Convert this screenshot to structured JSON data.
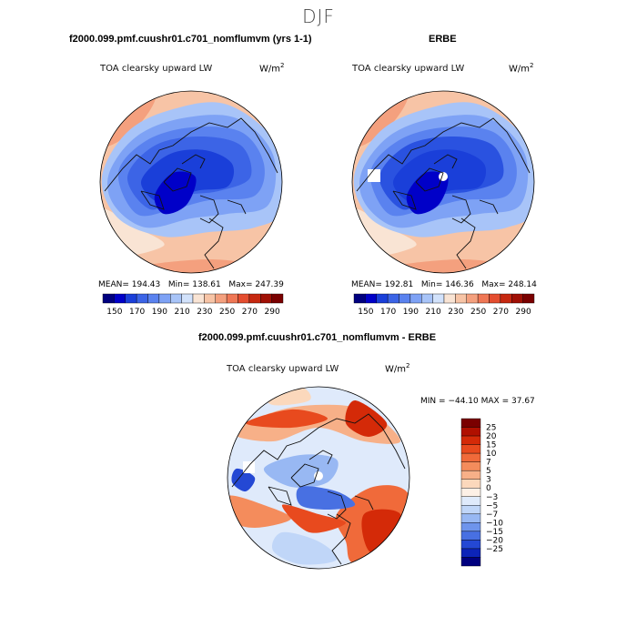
{
  "page": {
    "title": "DJF"
  },
  "chart_data": [
    {
      "type": "heatmap",
      "panel": "top-left",
      "title": "f2000.099.pmf.cuushr01.c701_nomflumvm (yrs 1-1)",
      "variable": "TOA clearsky upward LW",
      "units_base": "W/m",
      "units_exp": "2",
      "stats": {
        "mean_label": "MEAN=",
        "mean": "194.43",
        "min_label": "Min=",
        "min": "138.61",
        "max_label": "Max=",
        "max": "247.39"
      },
      "colorbar": {
        "orientation": "horizontal",
        "tick_labels": [
          "150",
          "170",
          "190",
          "210",
          "230",
          "250",
          "270",
          "290"
        ],
        "colors": [
          "#00007f",
          "#0000c8",
          "#1a3fd9",
          "#3c64e6",
          "#5a82ef",
          "#7ea2f5",
          "#a8c4f8",
          "#d2e2fb",
          "#f9e4d4",
          "#f7c4a6",
          "#f4a07e",
          "#ef7755",
          "#e44d2f",
          "#c62810",
          "#a01005",
          "#7a0000"
        ]
      },
      "projection": "north polar stereographic"
    },
    {
      "type": "heatmap",
      "panel": "top-right",
      "title": "ERBE",
      "variable": "TOA clearsky upward LW",
      "units_base": "W/m",
      "units_exp": "2",
      "stats": {
        "mean_label": "MEAN=",
        "mean": "192.81",
        "min_label": "Min=",
        "min": "146.36",
        "max_label": "Max=",
        "max": "248.14"
      },
      "colorbar": {
        "orientation": "horizontal",
        "tick_labels": [
          "150",
          "170",
          "190",
          "210",
          "230",
          "250",
          "270",
          "290"
        ],
        "colors": [
          "#00007f",
          "#0000c8",
          "#1a3fd9",
          "#3c64e6",
          "#5a82ef",
          "#7ea2f5",
          "#a8c4f8",
          "#d2e2fb",
          "#f9e4d4",
          "#f7c4a6",
          "#f4a07e",
          "#ef7755",
          "#e44d2f",
          "#c62810",
          "#a01005",
          "#7a0000"
        ]
      },
      "projection": "north polar stereographic"
    },
    {
      "type": "heatmap",
      "panel": "bottom",
      "title": "f2000.099.pmf.cuushr01.c701_nomflumvm - ERBE",
      "variable": "TOA clearsky upward LW",
      "units_base": "W/m",
      "units_exp": "2",
      "stats": {
        "min_label": "MIN =",
        "min": "−44.10",
        "max_label": "MAX =",
        "max": "37.67"
      },
      "colorbar": {
        "orientation": "vertical",
        "tick_labels": [
          "25",
          "20",
          "15",
          "10",
          "7",
          "5",
          "3",
          "0",
          "−3",
          "−5",
          "−7",
          "−10",
          "−15",
          "−20",
          "−25"
        ],
        "colors": [
          "#7a0000",
          "#b01000",
          "#d42a08",
          "#e84a1e",
          "#f06a3a",
          "#f48c5c",
          "#f7b088",
          "#fbd8bc",
          "#fdf0e6",
          "#dfeafb",
          "#c0d6f8",
          "#98b8f3",
          "#6e94ec",
          "#4870e2",
          "#2448d4",
          "#0c24b8",
          "#00007f"
        ]
      },
      "projection": "north polar stereographic"
    }
  ]
}
